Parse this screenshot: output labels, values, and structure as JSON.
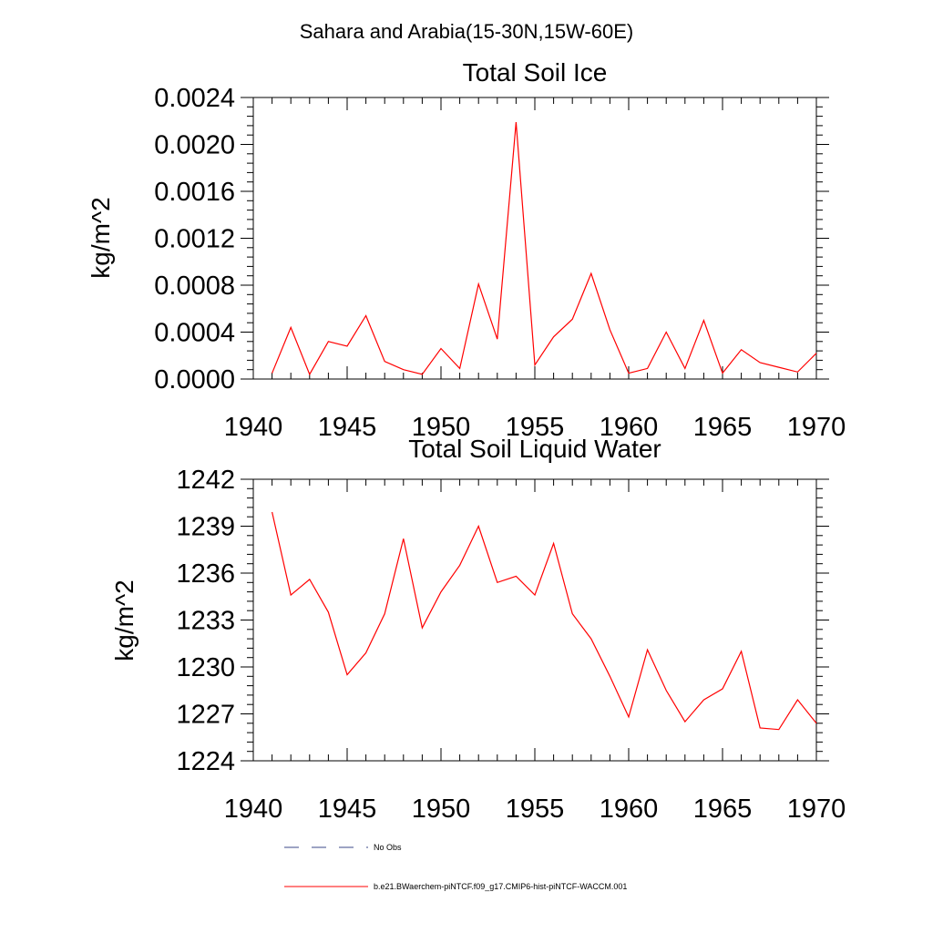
{
  "suptitle": "Sahara and Arabia(15-30N,15W-60E)",
  "colors": {
    "series": "#ff0000",
    "obs": "#3b4a8a",
    "axis": "#000000"
  },
  "chart_data": [
    {
      "type": "line",
      "title": "Total Soil Ice",
      "xlabel": "",
      "ylabel": "kg/m^2",
      "xlim": [
        1940,
        1970
      ],
      "ylim": [
        0,
        0.0024
      ],
      "xticks": [
        1940,
        1945,
        1950,
        1955,
        1960,
        1965,
        1970
      ],
      "xtick_labels": [
        "1940",
        "1945",
        "1950",
        "1955",
        "1960",
        "1965",
        "1970"
      ],
      "yticks": [
        0,
        0.0004,
        0.0008,
        0.0012,
        0.0016,
        0.002,
        0.0024
      ],
      "ytick_labels": [
        "0.0000",
        "0.0004",
        "0.0008",
        "0.0012",
        "0.0016",
        "0.0020",
        "0.0024"
      ],
      "grid": false,
      "x": [
        1941,
        1942,
        1943,
        1944,
        1945,
        1946,
        1947,
        1948,
        1949,
        1950,
        1951,
        1952,
        1953,
        1954,
        1955,
        1956,
        1957,
        1958,
        1959,
        1960,
        1961,
        1962,
        1963,
        1964,
        1965,
        1966,
        1967,
        1968,
        1969,
        1970
      ],
      "series": [
        {
          "name": "b.e21.BWaerchem-piNTCF.f09_g17.CMIP6-hist-piNTCF-WACCM.001",
          "values": [
            5e-05,
            0.00044,
            4e-05,
            0.00032,
            0.00028,
            0.00054,
            0.00015,
            8e-05,
            4e-05,
            0.00026,
            9e-05,
            0.00081,
            0.00034,
            0.00219,
            0.00012,
            0.00036,
            0.00051,
            0.0009,
            0.00042,
            5e-05,
            9e-05,
            0.0004,
            9e-05,
            0.0005,
            5e-05,
            0.00025,
            0.00014,
            0.0001,
            6e-05,
            0.00022
          ]
        }
      ]
    },
    {
      "type": "line",
      "title": "Total Soil Liquid Water",
      "xlabel": "",
      "ylabel": "kg/m^2",
      "xlim": [
        1940,
        1970
      ],
      "ylim": [
        1224,
        1242
      ],
      "xticks": [
        1940,
        1945,
        1950,
        1955,
        1960,
        1965,
        1970
      ],
      "xtick_labels": [
        "1940",
        "1945",
        "1950",
        "1955",
        "1960",
        "1965",
        "1970"
      ],
      "yticks": [
        1224,
        1227,
        1230,
        1233,
        1236,
        1239,
        1242
      ],
      "ytick_labels": [
        "1224",
        "1227",
        "1230",
        "1233",
        "1236",
        "1239",
        "1242"
      ],
      "grid": false,
      "x": [
        1941,
        1942,
        1943,
        1944,
        1945,
        1946,
        1947,
        1948,
        1949,
        1950,
        1951,
        1952,
        1953,
        1954,
        1955,
        1956,
        1957,
        1958,
        1959,
        1960,
        1961,
        1962,
        1963,
        1964,
        1965,
        1966,
        1967,
        1968,
        1969,
        1970
      ],
      "series": [
        {
          "name": "b.e21.BWaerchem-piNTCF.f09_g17.CMIP6-hist-piNTCF-WACCM.001",
          "values": [
            1239.9,
            1234.6,
            1235.6,
            1233.5,
            1229.5,
            1230.9,
            1233.4,
            1238.2,
            1232.5,
            1234.8,
            1236.5,
            1239.0,
            1235.4,
            1235.8,
            1234.6,
            1237.9,
            1233.4,
            1231.8,
            1229.4,
            1226.8,
            1231.1,
            1228.5,
            1226.5,
            1227.9,
            1228.6,
            1231.0,
            1226.1,
            1226.0,
            1227.9,
            1226.4
          ]
        }
      ]
    }
  ],
  "legend": {
    "placement": "bottom",
    "items": [
      {
        "label": "No Obs",
        "style": "dashed"
      },
      {
        "label": "b.e21.BWaerchem-piNTCF.f09_g17.CMIP6-hist-piNTCF-WACCM.001",
        "style": "solid"
      }
    ]
  }
}
